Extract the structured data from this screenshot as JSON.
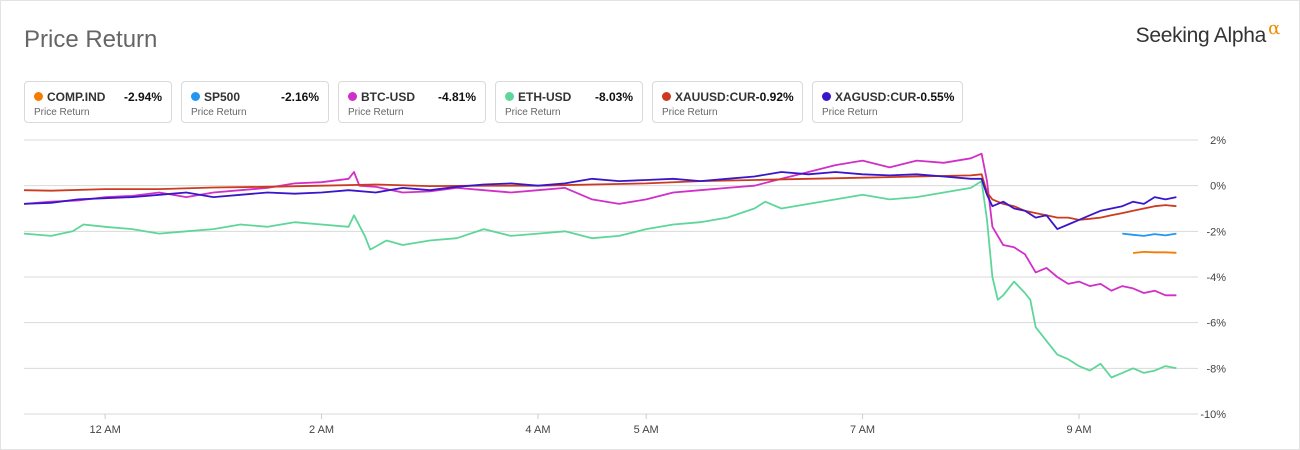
{
  "header": {
    "title": "Price Return",
    "brand": "Seeking Alpha",
    "brand_mark": "α"
  },
  "legend": [
    {
      "name": "COMP.IND",
      "value": "-2.94%",
      "sub": "Price Return",
      "color": "#f57c00",
      "width": 148
    },
    {
      "name": "SP500",
      "value": "-2.16%",
      "sub": "Price Return",
      "color": "#2196f3",
      "width": 148
    },
    {
      "name": "BTC-USD",
      "value": "-4.81%",
      "sub": "Price Return",
      "color": "#d12fc7",
      "width": 148
    },
    {
      "name": "ETH-USD",
      "value": "-8.03%",
      "sub": "Price Return",
      "color": "#5ed69a",
      "width": 148
    },
    {
      "name": "XAUUSD:CUR",
      "value": "-0.92%",
      "sub": "Price Return",
      "color": "#cc3b1f",
      "width": 151
    },
    {
      "name": "XAGUSD:CUR",
      "value": "-0.55%",
      "sub": "Price Return",
      "color": "#3a16c9",
      "width": 151
    }
  ],
  "chart_data": {
    "type": "line",
    "title": "Price Return",
    "ylim": [
      -10,
      2
    ],
    "y_ticks": [
      2,
      0,
      -2,
      -4,
      -6,
      -8,
      -10
    ],
    "y_tick_labels": [
      "2%",
      "0%",
      "-2%",
      "-4%",
      "-6%",
      "-8%",
      "-10%"
    ],
    "x_range": [
      -0.75,
      10.1
    ],
    "x_ticks": [
      0,
      2,
      4,
      5,
      7,
      9
    ],
    "x_tick_labels": [
      "12 AM",
      "2 AM",
      "4 AM",
      "5 AM",
      "7 AM",
      "9 AM"
    ],
    "grid": true,
    "legend_position": "top",
    "series": [
      {
        "name": "COMP.IND",
        "color": "#f57c00",
        "points": [
          [
            9.5,
            -2.95
          ],
          [
            9.6,
            -2.9
          ],
          [
            9.7,
            -2.92
          ],
          [
            9.8,
            -2.92
          ],
          [
            9.9,
            -2.94
          ]
        ]
      },
      {
        "name": "SP500",
        "color": "#2196f3",
        "points": [
          [
            9.4,
            -2.1
          ],
          [
            9.5,
            -2.15
          ],
          [
            9.6,
            -2.2
          ],
          [
            9.7,
            -2.12
          ],
          [
            9.8,
            -2.18
          ],
          [
            9.9,
            -2.1
          ]
        ]
      },
      {
        "name": "BTC-USD",
        "color": "#d12fc7",
        "points": [
          [
            -0.75,
            -0.8
          ],
          [
            -0.5,
            -0.7
          ],
          [
            -0.25,
            -0.65
          ],
          [
            0,
            -0.5
          ],
          [
            0.25,
            -0.45
          ],
          [
            0.5,
            -0.3
          ],
          [
            0.75,
            -0.5
          ],
          [
            1,
            -0.3
          ],
          [
            1.25,
            -0.2
          ],
          [
            1.5,
            -0.1
          ],
          [
            1.75,
            0.1
          ],
          [
            2,
            0.15
          ],
          [
            2.25,
            0.3
          ],
          [
            2.3,
            0.6
          ],
          [
            2.35,
            0
          ],
          [
            2.5,
            -0.05
          ],
          [
            2.75,
            -0.3
          ],
          [
            3,
            -0.25
          ],
          [
            3.25,
            -0.1
          ],
          [
            3.5,
            -0.2
          ],
          [
            3.75,
            -0.3
          ],
          [
            4,
            -0.2
          ],
          [
            4.25,
            -0.1
          ],
          [
            4.5,
            -0.6
          ],
          [
            4.75,
            -0.8
          ],
          [
            5,
            -0.6
          ],
          [
            5.25,
            -0.3
          ],
          [
            5.5,
            -0.2
          ],
          [
            5.75,
            -0.1
          ],
          [
            6,
            0
          ],
          [
            6.25,
            0.3
          ],
          [
            6.5,
            0.6
          ],
          [
            6.75,
            0.9
          ],
          [
            7,
            1.1
          ],
          [
            7.25,
            0.8
          ],
          [
            7.5,
            1.1
          ],
          [
            7.75,
            1
          ],
          [
            8,
            1.2
          ],
          [
            8.1,
            1.4
          ],
          [
            8.15,
            0.2
          ],
          [
            8.2,
            -1.8
          ],
          [
            8.3,
            -2.6
          ],
          [
            8.4,
            -2.7
          ],
          [
            8.5,
            -3
          ],
          [
            8.6,
            -3.8
          ],
          [
            8.7,
            -3.6
          ],
          [
            8.8,
            -4
          ],
          [
            8.9,
            -4.3
          ],
          [
            9,
            -4.2
          ],
          [
            9.1,
            -4.4
          ],
          [
            9.2,
            -4.3
          ],
          [
            9.3,
            -4.6
          ],
          [
            9.4,
            -4.4
          ],
          [
            9.5,
            -4.5
          ],
          [
            9.6,
            -4.7
          ],
          [
            9.7,
            -4.6
          ],
          [
            9.8,
            -4.8
          ],
          [
            9.9,
            -4.8
          ]
        ]
      },
      {
        "name": "ETH-USD",
        "color": "#5ed69a",
        "points": [
          [
            -0.75,
            -2.1
          ],
          [
            -0.5,
            -2.2
          ],
          [
            -0.3,
            -2
          ],
          [
            -0.2,
            -1.7
          ],
          [
            0,
            -1.8
          ],
          [
            0.25,
            -1.9
          ],
          [
            0.5,
            -2.1
          ],
          [
            0.75,
            -2
          ],
          [
            1,
            -1.9
          ],
          [
            1.25,
            -1.7
          ],
          [
            1.5,
            -1.8
          ],
          [
            1.75,
            -1.6
          ],
          [
            2,
            -1.7
          ],
          [
            2.25,
            -1.8
          ],
          [
            2.3,
            -1.3
          ],
          [
            2.4,
            -2.2
          ],
          [
            2.45,
            -2.8
          ],
          [
            2.6,
            -2.4
          ],
          [
            2.75,
            -2.6
          ],
          [
            3,
            -2.4
          ],
          [
            3.25,
            -2.3
          ],
          [
            3.5,
            -1.9
          ],
          [
            3.75,
            -2.2
          ],
          [
            4,
            -2.1
          ],
          [
            4.25,
            -2
          ],
          [
            4.5,
            -2.3
          ],
          [
            4.75,
            -2.2
          ],
          [
            5,
            -1.9
          ],
          [
            5.25,
            -1.7
          ],
          [
            5.5,
            -1.6
          ],
          [
            5.75,
            -1.4
          ],
          [
            6,
            -1
          ],
          [
            6.1,
            -0.7
          ],
          [
            6.25,
            -1
          ],
          [
            6.5,
            -0.8
          ],
          [
            6.75,
            -0.6
          ],
          [
            7,
            -0.4
          ],
          [
            7.25,
            -0.6
          ],
          [
            7.5,
            -0.5
          ],
          [
            7.75,
            -0.3
          ],
          [
            8,
            -0.1
          ],
          [
            8.1,
            0.2
          ],
          [
            8.15,
            -1.5
          ],
          [
            8.2,
            -4
          ],
          [
            8.25,
            -5
          ],
          [
            8.3,
            -4.8
          ],
          [
            8.4,
            -4.2
          ],
          [
            8.5,
            -4.7
          ],
          [
            8.55,
            -5
          ],
          [
            8.6,
            -6.2
          ],
          [
            8.7,
            -6.8
          ],
          [
            8.8,
            -7.4
          ],
          [
            8.9,
            -7.6
          ],
          [
            9,
            -7.9
          ],
          [
            9.1,
            -8.1
          ],
          [
            9.2,
            -7.8
          ],
          [
            9.3,
            -8.4
          ],
          [
            9.4,
            -8.2
          ],
          [
            9.5,
            -8
          ],
          [
            9.6,
            -8.2
          ],
          [
            9.7,
            -8.1
          ],
          [
            9.8,
            -7.9
          ],
          [
            9.9,
            -8
          ]
        ]
      },
      {
        "name": "XAUUSD:CUR",
        "color": "#cc3b1f",
        "points": [
          [
            -0.75,
            -0.2
          ],
          [
            -0.5,
            -0.22
          ],
          [
            0,
            -0.15
          ],
          [
            0.5,
            -0.15
          ],
          [
            1,
            -0.08
          ],
          [
            1.5,
            -0.05
          ],
          [
            2,
            0
          ],
          [
            2.5,
            0.05
          ],
          [
            3,
            -0.02
          ],
          [
            3.5,
            0
          ],
          [
            4,
            0
          ],
          [
            4.5,
            0.05
          ],
          [
            5,
            0.1
          ],
          [
            5.5,
            0.2
          ],
          [
            6,
            0.25
          ],
          [
            6.5,
            0.3
          ],
          [
            7,
            0.35
          ],
          [
            7.5,
            0.4
          ],
          [
            8,
            0.45
          ],
          [
            8.1,
            0.5
          ],
          [
            8.15,
            -0.3
          ],
          [
            8.2,
            -0.6
          ],
          [
            8.3,
            -0.8
          ],
          [
            8.4,
            -0.9
          ],
          [
            8.5,
            -1.1
          ],
          [
            8.6,
            -1.2
          ],
          [
            8.7,
            -1.3
          ],
          [
            8.8,
            -1.4
          ],
          [
            8.9,
            -1.4
          ],
          [
            9,
            -1.5
          ],
          [
            9.1,
            -1.45
          ],
          [
            9.2,
            -1.4
          ],
          [
            9.3,
            -1.3
          ],
          [
            9.4,
            -1.2
          ],
          [
            9.5,
            -1.1
          ],
          [
            9.6,
            -1
          ],
          [
            9.7,
            -0.9
          ],
          [
            9.8,
            -0.85
          ],
          [
            9.9,
            -0.9
          ]
        ]
      },
      {
        "name": "XAGUSD:CUR",
        "color": "#3a16c9",
        "points": [
          [
            -0.75,
            -0.8
          ],
          [
            -0.5,
            -0.75
          ],
          [
            -0.25,
            -0.6
          ],
          [
            0,
            -0.55
          ],
          [
            0.25,
            -0.5
          ],
          [
            0.5,
            -0.4
          ],
          [
            0.75,
            -0.3
          ],
          [
            1,
            -0.5
          ],
          [
            1.25,
            -0.4
          ],
          [
            1.5,
            -0.3
          ],
          [
            1.75,
            -0.35
          ],
          [
            2,
            -0.3
          ],
          [
            2.25,
            -0.2
          ],
          [
            2.5,
            -0.3
          ],
          [
            2.75,
            -0.1
          ],
          [
            3,
            -0.2
          ],
          [
            3.25,
            -0.05
          ],
          [
            3.5,
            0.05
          ],
          [
            3.75,
            0.1
          ],
          [
            4,
            0
          ],
          [
            4.25,
            0.1
          ],
          [
            4.5,
            0.3
          ],
          [
            4.75,
            0.2
          ],
          [
            5,
            0.25
          ],
          [
            5.25,
            0.3
          ],
          [
            5.5,
            0.2
          ],
          [
            5.75,
            0.3
          ],
          [
            6,
            0.4
          ],
          [
            6.25,
            0.6
          ],
          [
            6.5,
            0.5
          ],
          [
            6.75,
            0.6
          ],
          [
            7,
            0.5
          ],
          [
            7.25,
            0.45
          ],
          [
            7.5,
            0.5
          ],
          [
            7.75,
            0.4
          ],
          [
            8,
            0.3
          ],
          [
            8.1,
            0.3
          ],
          [
            8.15,
            -0.4
          ],
          [
            8.2,
            -0.9
          ],
          [
            8.3,
            -0.7
          ],
          [
            8.4,
            -1
          ],
          [
            8.5,
            -1.1
          ],
          [
            8.6,
            -1.4
          ],
          [
            8.7,
            -1.3
          ],
          [
            8.8,
            -1.9
          ],
          [
            8.9,
            -1.7
          ],
          [
            9,
            -1.5
          ],
          [
            9.1,
            -1.3
          ],
          [
            9.2,
            -1.1
          ],
          [
            9.3,
            -1
          ],
          [
            9.4,
            -0.9
          ],
          [
            9.5,
            -0.7
          ],
          [
            9.6,
            -0.8
          ],
          [
            9.7,
            -0.5
          ],
          [
            9.8,
            -0.6
          ],
          [
            9.9,
            -0.5
          ]
        ]
      }
    ]
  }
}
